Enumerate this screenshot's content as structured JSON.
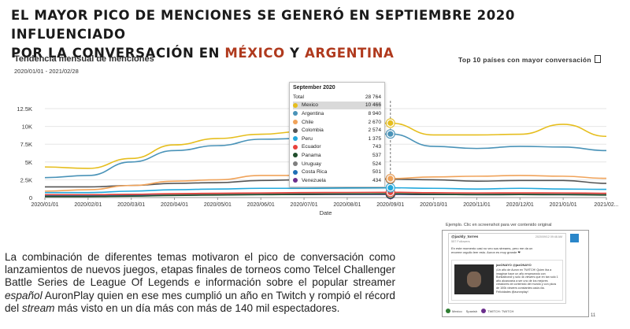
{
  "headline": {
    "line1": "EL MAYOR PICO DE MENCIONES SE GENERÓ EN SEPTIEMBRE 2020 INFLUENCIADO",
    "line2_pre": "POR LA CONVERSACIÓN EN ",
    "accent1": "MÉXICO",
    "line2_mid": " Y ",
    "accent2": "ARGENTINA"
  },
  "chart_title": "Tendencia mensual de menciones",
  "date_range": "2020/01/01 - 2021/02/28",
  "top10_label": "Top 10 países con mayor conversación",
  "colors": {
    "accent_text": "#b03a1e",
    "Mexico": "#e6be1e",
    "Argentina": "#4a93b8",
    "Chile": "#f0a35a",
    "Colombia": "#555555",
    "Peru": "#23a8dc",
    "Ecuador": "#e8423c",
    "Panama": "#1f4d2b",
    "Uruguay": "#7f7f7f",
    "CostaRica": "#1f6fb5",
    "Venezuela": "#6b2e8c",
    "grid": "#e6e6e6",
    "cursor": "#777777"
  },
  "chart_data": {
    "type": "line",
    "xlabel": "Date",
    "ylabel": "",
    "ylim": [
      0,
      12500
    ],
    "yticks": [
      "0",
      "2.5K",
      "5K",
      "7.5K",
      "10K",
      "12.5K"
    ],
    "ytick_values": [
      0,
      2500,
      5000,
      7500,
      10000,
      12500
    ],
    "x": [
      "2020/01/01",
      "2020/02/01",
      "2020/03/01",
      "2020/04/01",
      "2020/05/01",
      "2020/06/01",
      "2020/07/01",
      "2020/08/01",
      "2020/09/01",
      "2020/10/01",
      "2020/11/01",
      "2020/12/01",
      "2021/01/01",
      "2021/02/01"
    ],
    "xtick_labels": [
      "2020/01/01",
      "2020/02/01",
      "2020/03/01",
      "2020/04/01",
      "2020/05/01",
      "2020/06/01",
      "2020/07/01",
      "2020/08/01",
      "2020/09/01",
      "2020/10/01",
      "2020/11/01",
      "2020/12/01",
      "2021/01/01",
      "2021/02..."
    ],
    "cursor_index": 8,
    "series": [
      {
        "name": "Mexico",
        "color_key": "Mexico",
        "values": [
          4300,
          4100,
          5500,
          7400,
          8300,
          8900,
          9300,
          9700,
          10466,
          8800,
          8800,
          8900,
          10300,
          8600
        ]
      },
      {
        "name": "Argentina",
        "color_key": "Argentina",
        "values": [
          2800,
          3100,
          5000,
          6600,
          7300,
          8200,
          8300,
          8600,
          8940,
          7200,
          6900,
          7200,
          7100,
          6600
        ]
      },
      {
        "name": "Chile",
        "color_key": "Chile",
        "values": [
          900,
          1100,
          1700,
          2300,
          2500,
          3100,
          3100,
          2900,
          2670,
          2900,
          3000,
          3100,
          3000,
          2700
        ]
      },
      {
        "name": "Colombia",
        "color_key": "Colombia",
        "values": [
          1500,
          1500,
          1700,
          2000,
          2100,
          2400,
          2500,
          2600,
          2574,
          2500,
          2300,
          2400,
          2400,
          2000
        ]
      },
      {
        "name": "Peru",
        "color_key": "Peru",
        "values": [
          700,
          700,
          900,
          1100,
          1200,
          1300,
          1300,
          1350,
          1375,
          1300,
          1200,
          1300,
          1200,
          1150
        ]
      },
      {
        "name": "Ecuador",
        "color_key": "Ecuador",
        "values": [
          400,
          400,
          450,
          550,
          600,
          650,
          700,
          720,
          743,
          680,
          650,
          660,
          650,
          600
        ]
      },
      {
        "name": "Panama",
        "color_key": "Panama",
        "values": [
          150,
          150,
          200,
          300,
          350,
          400,
          450,
          500,
          537,
          450,
          400,
          420,
          400,
          350
        ]
      },
      {
        "name": "Uruguay",
        "color_key": "Uruguay",
        "values": [
          400,
          400,
          450,
          480,
          500,
          520,
          520,
          520,
          524,
          500,
          480,
          490,
          480,
          450
        ]
      },
      {
        "name": "Costa Rica",
        "color_key": "CostaRica",
        "values": [
          300,
          300,
          350,
          400,
          420,
          450,
          470,
          490,
          501,
          450,
          430,
          440,
          430,
          400
        ]
      },
      {
        "name": "Venezuela",
        "color_key": "Venezuela",
        "values": [
          350,
          350,
          380,
          400,
          410,
          420,
          425,
          430,
          434,
          420,
          410,
          415,
          410,
          400
        ]
      }
    ],
    "tooltip": {
      "month": "September 2020",
      "total_label": "Total",
      "total_value": "28 764",
      "rows": [
        {
          "name": "Mexico",
          "value": "10 466",
          "color_key": "Mexico",
          "selected": true
        },
        {
          "name": "Argentina",
          "value": "8 940",
          "color_key": "Argentina",
          "selected": false
        },
        {
          "name": "Chile",
          "value": "2 670",
          "color_key": "Chile",
          "selected": false
        },
        {
          "name": "Colombia",
          "value": "2 574",
          "color_key": "Colombia",
          "selected": false
        },
        {
          "name": "Peru",
          "value": "1 375",
          "color_key": "Peru",
          "selected": false
        },
        {
          "name": "Ecuador",
          "value": "743",
          "color_key": "Ecuador",
          "selected": false
        },
        {
          "name": "Panama",
          "value": "537",
          "color_key": "Panama",
          "selected": false
        },
        {
          "name": "Uruguay",
          "value": "524",
          "color_key": "Uruguay",
          "selected": false
        },
        {
          "name": "Costa Rica",
          "value": "501",
          "color_key": "CostaRica",
          "selected": false
        },
        {
          "name": "Venezuela",
          "value": "434",
          "color_key": "Venezuela",
          "selected": false
        }
      ]
    }
  },
  "body": {
    "p1": "La combinación de diferentes temas motivaron el pico de conversación como lanzamientos de nuevos juegos, etapas finales de torneos como Telcel Challenger Battle Series de League Of Legends e información sobre el popular streamer ",
    "em1": "español",
    "p2": " AuronPlay quien en ese mes cumplió un año en Twitch y rompió el récord del ",
    "em2": "stream",
    "p3": " más visto en un día más con más de 140 mil espectadores."
  },
  "embed": {
    "caption": "Ejemplo. Clic en screenshot para ver contenido original",
    "user": "@jackly_torres",
    "followers": "557 Followers",
    "date": "2020/09/12 09:48 AM",
    "text": "En este momento casi no veo sus streams, pero me da un enorme orgullo leer esto. Auron es muy grande ❤",
    "inner_user": "jaxONAYO @jaxONAYO",
    "inner_date": "2020/09/12 07:59 AM",
    "inner_text": "¡Un año de Auron en TWITCH! Quien iba a imaginar hace un año empezando con Bonkalbondi y solo 4k viewers que en tan solo 1 año alcanzaría a ser uno de los mejores creadores de contenido del mundo y con picos de 100k viewers constantes cada día. Felicidades @auronplay!",
    "footer_country": "Mexico",
    "footer_lang": "Spanish",
    "footer_source": "TWITCH: TWITCH"
  },
  "page_number": "11"
}
